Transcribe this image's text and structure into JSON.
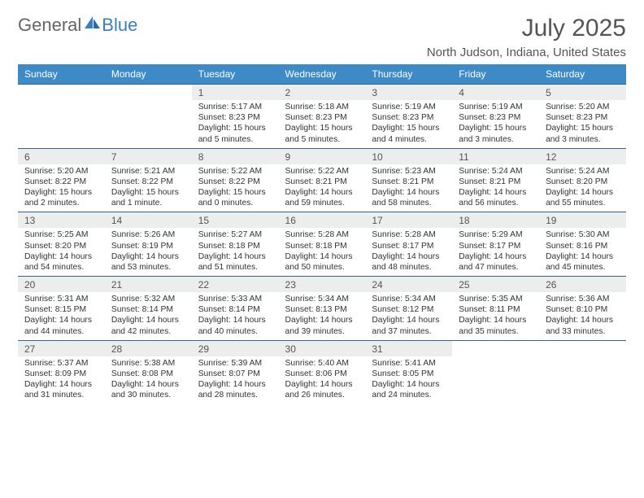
{
  "brand": {
    "part1": "General",
    "part2": "Blue"
  },
  "title": "July 2025",
  "location": "North Judson, Indiana, United States",
  "colors": {
    "header_bg": "#3d8ac7",
    "header_text": "#ffffff",
    "daynum_bg": "#eceded",
    "rule": "#39638a",
    "logo_blue": "#3a7fc0",
    "logo_gray": "#666666",
    "body_text": "#333333"
  },
  "day_headers": [
    "Sunday",
    "Monday",
    "Tuesday",
    "Wednesday",
    "Thursday",
    "Friday",
    "Saturday"
  ],
  "weeks": [
    [
      null,
      null,
      {
        "n": "1",
        "sr": "5:17 AM",
        "ss": "8:23 PM",
        "dl": "15 hours and 5 minutes."
      },
      {
        "n": "2",
        "sr": "5:18 AM",
        "ss": "8:23 PM",
        "dl": "15 hours and 5 minutes."
      },
      {
        "n": "3",
        "sr": "5:19 AM",
        "ss": "8:23 PM",
        "dl": "15 hours and 4 minutes."
      },
      {
        "n": "4",
        "sr": "5:19 AM",
        "ss": "8:23 PM",
        "dl": "15 hours and 3 minutes."
      },
      {
        "n": "5",
        "sr": "5:20 AM",
        "ss": "8:23 PM",
        "dl": "15 hours and 3 minutes."
      }
    ],
    [
      {
        "n": "6",
        "sr": "5:20 AM",
        "ss": "8:22 PM",
        "dl": "15 hours and 2 minutes."
      },
      {
        "n": "7",
        "sr": "5:21 AM",
        "ss": "8:22 PM",
        "dl": "15 hours and 1 minute."
      },
      {
        "n": "8",
        "sr": "5:22 AM",
        "ss": "8:22 PM",
        "dl": "15 hours and 0 minutes."
      },
      {
        "n": "9",
        "sr": "5:22 AM",
        "ss": "8:21 PM",
        "dl": "14 hours and 59 minutes."
      },
      {
        "n": "10",
        "sr": "5:23 AM",
        "ss": "8:21 PM",
        "dl": "14 hours and 58 minutes."
      },
      {
        "n": "11",
        "sr": "5:24 AM",
        "ss": "8:21 PM",
        "dl": "14 hours and 56 minutes."
      },
      {
        "n": "12",
        "sr": "5:24 AM",
        "ss": "8:20 PM",
        "dl": "14 hours and 55 minutes."
      }
    ],
    [
      {
        "n": "13",
        "sr": "5:25 AM",
        "ss": "8:20 PM",
        "dl": "14 hours and 54 minutes."
      },
      {
        "n": "14",
        "sr": "5:26 AM",
        "ss": "8:19 PM",
        "dl": "14 hours and 53 minutes."
      },
      {
        "n": "15",
        "sr": "5:27 AM",
        "ss": "8:18 PM",
        "dl": "14 hours and 51 minutes."
      },
      {
        "n": "16",
        "sr": "5:28 AM",
        "ss": "8:18 PM",
        "dl": "14 hours and 50 minutes."
      },
      {
        "n": "17",
        "sr": "5:28 AM",
        "ss": "8:17 PM",
        "dl": "14 hours and 48 minutes."
      },
      {
        "n": "18",
        "sr": "5:29 AM",
        "ss": "8:17 PM",
        "dl": "14 hours and 47 minutes."
      },
      {
        "n": "19",
        "sr": "5:30 AM",
        "ss": "8:16 PM",
        "dl": "14 hours and 45 minutes."
      }
    ],
    [
      {
        "n": "20",
        "sr": "5:31 AM",
        "ss": "8:15 PM",
        "dl": "14 hours and 44 minutes."
      },
      {
        "n": "21",
        "sr": "5:32 AM",
        "ss": "8:14 PM",
        "dl": "14 hours and 42 minutes."
      },
      {
        "n": "22",
        "sr": "5:33 AM",
        "ss": "8:14 PM",
        "dl": "14 hours and 40 minutes."
      },
      {
        "n": "23",
        "sr": "5:34 AM",
        "ss": "8:13 PM",
        "dl": "14 hours and 39 minutes."
      },
      {
        "n": "24",
        "sr": "5:34 AM",
        "ss": "8:12 PM",
        "dl": "14 hours and 37 minutes."
      },
      {
        "n": "25",
        "sr": "5:35 AM",
        "ss": "8:11 PM",
        "dl": "14 hours and 35 minutes."
      },
      {
        "n": "26",
        "sr": "5:36 AM",
        "ss": "8:10 PM",
        "dl": "14 hours and 33 minutes."
      }
    ],
    [
      {
        "n": "27",
        "sr": "5:37 AM",
        "ss": "8:09 PM",
        "dl": "14 hours and 31 minutes."
      },
      {
        "n": "28",
        "sr": "5:38 AM",
        "ss": "8:08 PM",
        "dl": "14 hours and 30 minutes."
      },
      {
        "n": "29",
        "sr": "5:39 AM",
        "ss": "8:07 PM",
        "dl": "14 hours and 28 minutes."
      },
      {
        "n": "30",
        "sr": "5:40 AM",
        "ss": "8:06 PM",
        "dl": "14 hours and 26 minutes."
      },
      {
        "n": "31",
        "sr": "5:41 AM",
        "ss": "8:05 PM",
        "dl": "14 hours and 24 minutes."
      },
      null,
      null
    ]
  ],
  "labels": {
    "sunrise": "Sunrise: ",
    "sunset": "Sunset: ",
    "daylight": "Daylight: "
  }
}
